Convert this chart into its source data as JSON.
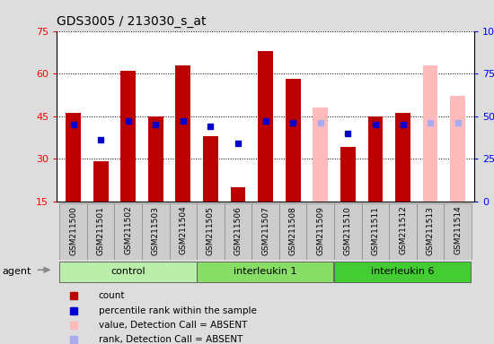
{
  "title": "GDS3005 / 213030_s_at",
  "samples": [
    "GSM211500",
    "GSM211501",
    "GSM211502",
    "GSM211503",
    "GSM211504",
    "GSM211505",
    "GSM211506",
    "GSM211507",
    "GSM211508",
    "GSM211509",
    "GSM211510",
    "GSM211511",
    "GSM211512",
    "GSM211513",
    "GSM211514"
  ],
  "groups": [
    {
      "label": "control",
      "start": 0,
      "end": 5,
      "color": "#bbeeaa"
    },
    {
      "label": "interleukin 1",
      "start": 5,
      "end": 10,
      "color": "#88dd66"
    },
    {
      "label": "interleukin 6",
      "start": 10,
      "end": 15,
      "color": "#44cc33"
    }
  ],
  "bar_values": [
    46,
    29,
    61,
    45,
    63,
    38,
    20,
    68,
    58,
    48,
    34,
    45,
    46,
    63,
    52
  ],
  "bar_colors": [
    "#bb0000",
    "#bb0000",
    "#bb0000",
    "#bb0000",
    "#bb0000",
    "#bb0000",
    "#bb0000",
    "#bb0000",
    "#bb0000",
    "#ffbbbb",
    "#bb0000",
    "#bb0000",
    "#bb0000",
    "#ffbbbb",
    "#ffbbbb"
  ],
  "rank_values": [
    45,
    36,
    47,
    45,
    47,
    44,
    34,
    47,
    46,
    46,
    40,
    45,
    45,
    46,
    46
  ],
  "rank_colors": [
    "#0000cc",
    "#0000cc",
    "#0000cc",
    "#0000cc",
    "#0000cc",
    "#0000cc",
    "#0000cc",
    "#0000cc",
    "#0000cc",
    "#aaaaee",
    "#0000cc",
    "#0000cc",
    "#0000cc",
    "#aaaaee",
    "#aaaaee"
  ],
  "ylim_left": [
    15,
    75
  ],
  "ylim_right": [
    0,
    100
  ],
  "yticks_left": [
    15,
    30,
    45,
    60,
    75
  ],
  "yticks_right": [
    0,
    25,
    50,
    75,
    100
  ],
  "label_bg": "#cccccc",
  "plot_bg": "#ffffff",
  "fig_bg": "#dddddd",
  "legend_items": [
    {
      "color": "#bb0000",
      "label": "count"
    },
    {
      "color": "#0000cc",
      "label": "percentile rank within the sample"
    },
    {
      "color": "#ffbbbb",
      "label": "value, Detection Call = ABSENT"
    },
    {
      "color": "#aaaaee",
      "label": "rank, Detection Call = ABSENT"
    }
  ],
  "bar_width": 0.55
}
